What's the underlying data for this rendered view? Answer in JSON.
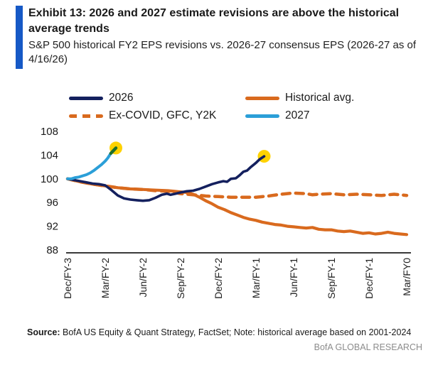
{
  "header": {
    "exhibit_title": "Exhibit 13: 2026 and 2027 estimate revisions are above the historical average trends",
    "subtitle": "S&P 500 historical FY2 EPS revisions vs. 2026-27 consensus EPS (2026-27 as of 4/16/26)",
    "accent_bar_color": "#1659C6"
  },
  "chart_data": {
    "type": "line",
    "title": "S&P 500 historical FY2 EPS revisions vs. 2026-27 consensus EPS",
    "x_axis": {
      "unit": "months from Dec/FY-3",
      "tick_months": [
        0,
        3,
        6,
        9,
        12,
        15,
        18,
        21,
        24,
        27
      ],
      "tick_labels": [
        "Dec/FY-3",
        "Mar/FY-2",
        "Jun/FY-2",
        "Sep/FY-2",
        "Dec/FY-2",
        "Mar/FY-1",
        "Jun/FY-1",
        "Sep/FY-1",
        "Dec/FY-1",
        "Mar/FY0"
      ]
    },
    "y_axis": {
      "min": 88,
      "max": 108,
      "ticks": [
        108,
        104,
        100,
        96,
        92,
        88
      ]
    },
    "grid": false,
    "legend_position": "top",
    "series": [
      {
        "name": "2026",
        "color": "#14205E",
        "width": 3.6,
        "points": [
          [
            0,
            100
          ],
          [
            0.5,
            99.8
          ],
          [
            1,
            99.6
          ],
          [
            1.5,
            99.4
          ],
          [
            2,
            99.2
          ],
          [
            2.5,
            99.1
          ],
          [
            3,
            98.9
          ],
          [
            3.5,
            98.1
          ],
          [
            4,
            97.2
          ],
          [
            4.5,
            96.7
          ],
          [
            5,
            96.5
          ],
          [
            5.5,
            96.4
          ],
          [
            6,
            96.3
          ],
          [
            6.5,
            96.4
          ],
          [
            7,
            96.8
          ],
          [
            7.5,
            97.3
          ],
          [
            7.9,
            97.5
          ],
          [
            8.2,
            97.3
          ],
          [
            8.6,
            97.5
          ],
          [
            9,
            97.7
          ],
          [
            9.5,
            97.9
          ],
          [
            10,
            98.0
          ],
          [
            10.5,
            98.3
          ],
          [
            11,
            98.7
          ],
          [
            11.5,
            99.1
          ],
          [
            12,
            99.4
          ],
          [
            12.4,
            99.6
          ],
          [
            12.7,
            99.5
          ],
          [
            13,
            100.0
          ],
          [
            13.4,
            100.1
          ],
          [
            13.7,
            100.6
          ],
          [
            14,
            101.2
          ],
          [
            14.3,
            101.4
          ],
          [
            14.6,
            102.0
          ],
          [
            15,
            102.7
          ],
          [
            15.3,
            103.3
          ],
          [
            15.65,
            103.8
          ]
        ],
        "end_marker": {
          "fill": "#FFD200",
          "radius": 9
        }
      },
      {
        "name": "Historical avg.",
        "color": "#D96A1E",
        "width": 4.2,
        "points": [
          [
            0,
            100
          ],
          [
            1,
            99.5
          ],
          [
            2,
            99.1
          ],
          [
            3,
            98.8
          ],
          [
            4,
            98.5
          ],
          [
            5,
            98.3
          ],
          [
            6,
            98.2
          ],
          [
            7,
            98.1
          ],
          [
            8,
            98.0
          ],
          [
            9,
            97.8
          ],
          [
            9.5,
            97.7
          ],
          [
            10,
            97.4
          ],
          [
            10.5,
            96.9
          ],
          [
            11,
            96.3
          ],
          [
            11.5,
            95.8
          ],
          [
            12,
            95.2
          ],
          [
            12.5,
            94.8
          ],
          [
            13,
            94.3
          ],
          [
            13.5,
            93.9
          ],
          [
            14,
            93.5
          ],
          [
            14.5,
            93.2
          ],
          [
            15,
            93.0
          ],
          [
            15.5,
            92.7
          ],
          [
            16,
            92.5
          ],
          [
            16.5,
            92.3
          ],
          [
            17,
            92.2
          ],
          [
            17.5,
            92.0
          ],
          [
            18,
            91.9
          ],
          [
            18.5,
            91.8
          ],
          [
            19,
            91.7
          ],
          [
            19.5,
            91.8
          ],
          [
            20,
            91.5
          ],
          [
            20.5,
            91.4
          ],
          [
            21,
            91.4
          ],
          [
            21.5,
            91.2
          ],
          [
            22,
            91.1
          ],
          [
            22.5,
            91.2
          ],
          [
            23,
            91.0
          ],
          [
            23.5,
            90.8
          ],
          [
            24,
            90.9
          ],
          [
            24.5,
            90.7
          ],
          [
            25,
            90.8
          ],
          [
            25.5,
            91.0
          ],
          [
            26,
            90.8
          ],
          [
            26.5,
            90.7
          ],
          [
            27,
            90.6
          ]
        ]
      },
      {
        "name": "Ex-COVID, GFC, Y2K",
        "color": "#D96A1E",
        "width": 4.5,
        "dash": true,
        "points": [
          [
            0,
            100
          ],
          [
            1,
            99.5
          ],
          [
            2,
            99.1
          ],
          [
            3,
            98.8
          ],
          [
            4,
            98.5
          ],
          [
            5,
            98.3
          ],
          [
            6,
            98.2
          ],
          [
            7,
            98.0
          ],
          [
            8,
            97.9
          ],
          [
            9,
            97.5
          ],
          [
            10,
            97.3
          ],
          [
            11,
            97.1
          ],
          [
            12,
            97.0
          ],
          [
            13,
            96.9
          ],
          [
            14,
            96.9
          ],
          [
            15,
            96.9
          ],
          [
            16,
            97.1
          ],
          [
            17,
            97.4
          ],
          [
            18,
            97.6
          ],
          [
            19,
            97.5
          ],
          [
            19.5,
            97.3
          ],
          [
            20,
            97.4
          ],
          [
            21,
            97.5
          ],
          [
            22,
            97.3
          ],
          [
            23,
            97.4
          ],
          [
            24,
            97.3
          ],
          [
            25,
            97.2
          ],
          [
            26,
            97.4
          ],
          [
            27,
            97.2
          ]
        ]
      },
      {
        "name": "2027",
        "color": "#2B9FD8",
        "width": 4,
        "points": [
          [
            0,
            100
          ],
          [
            0.3,
            100.0
          ],
          [
            0.6,
            100.2
          ],
          [
            0.9,
            100.3
          ],
          [
            1.2,
            100.5
          ],
          [
            1.5,
            100.7
          ],
          [
            1.8,
            101.0
          ],
          [
            2.1,
            101.4
          ],
          [
            2.4,
            101.9
          ],
          [
            2.7,
            102.4
          ],
          [
            3,
            103.0
          ],
          [
            3.2,
            103.5
          ],
          [
            3.45,
            104.3
          ]
        ],
        "end_marker": {
          "fill": "#FFD200",
          "radius": 9,
          "tail_color": "#1F6F2B",
          "tail_to": [
            3.85,
            105.2
          ]
        }
      }
    ]
  },
  "footer": {
    "source_label": "Source:",
    "source_text": " BofA US Equity & Quant Strategy, FactSet; Note: historical average based on 2001-2024",
    "brand": "BofA GLOBAL RESEARCH",
    "brand_color": "#8C8C8C"
  }
}
